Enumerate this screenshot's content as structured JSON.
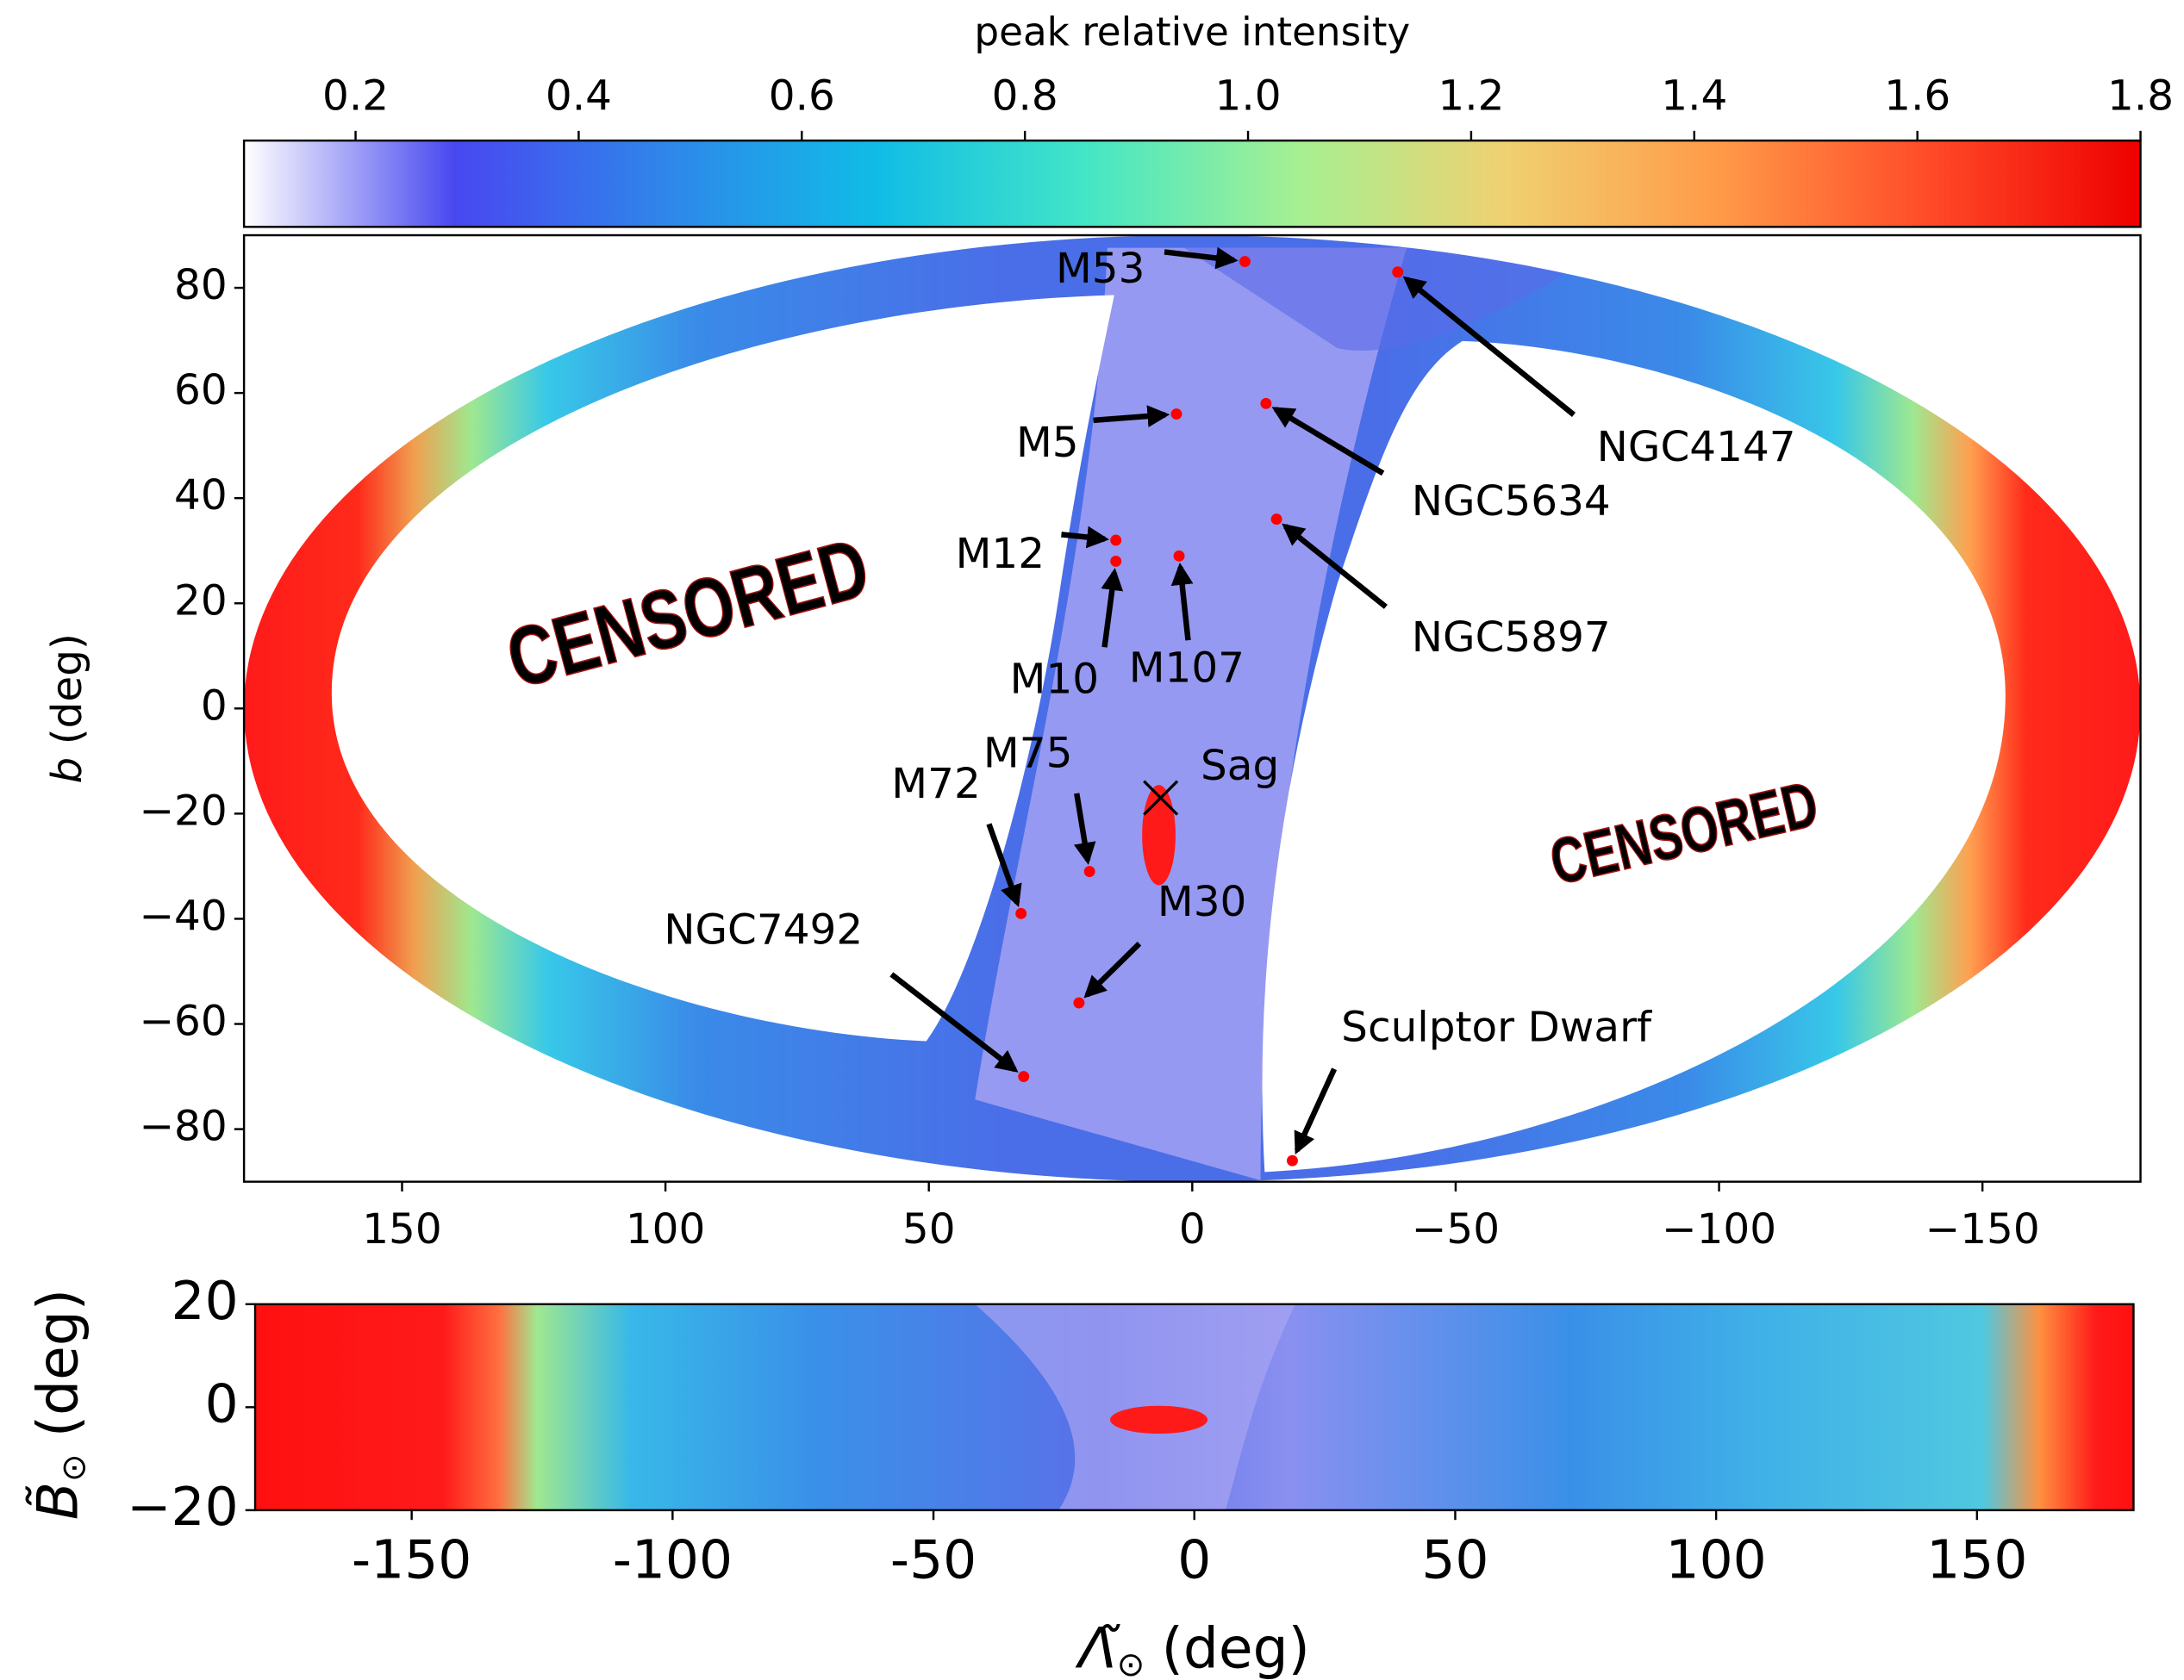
{
  "chart_data": [
    {
      "type": "colorbar",
      "label": "peak relative intensity",
      "xlim": [
        0.1,
        1.8
      ],
      "xticks": [
        0.2,
        0.4,
        0.6,
        0.8,
        {
          "value": 1,
          "label": "1.0"
        },
        1.2,
        1.4,
        1.6,
        1.8
      ],
      "colormap": [
        "#ffffff",
        "#4848f0",
        "#2f86ea",
        "#10bce6",
        "#44e6c6",
        "#a6f092",
        "#f0d070",
        "#ff9a48",
        "#ff4a28",
        "#ee0000"
      ]
    },
    {
      "type": "map",
      "ylabel": {
        "symbol": "b",
        "unit": "(deg)"
      },
      "xlim": [
        180,
        -180
      ],
      "ylim": [
        -90,
        90
      ],
      "xticks": [
        150,
        100,
        50,
        0,
        {
          "value": -50,
          "label": "−50"
        },
        {
          "value": -100,
          "label": "−100"
        },
        {
          "value": -150,
          "label": "−150"
        }
      ],
      "yticks": [
        {
          "value": -80,
          "label": "−80"
        },
        {
          "value": -60,
          "label": "−60"
        },
        {
          "value": -40,
          "label": "−40"
        },
        {
          "value": -20,
          "label": "−20"
        },
        0,
        20,
        40,
        60,
        80
      ],
      "marker_color": "#ff0000",
      "annotations": [
        {
          "label": "M53",
          "x": -10,
          "y": 85
        },
        {
          "label": "NGC4147",
          "x": -39,
          "y": 83
        },
        {
          "label": "M5",
          "x": 3,
          "y": 56
        },
        {
          "label": "NGC5634",
          "x": -14,
          "y": 58
        },
        {
          "label": "M12",
          "x": 14.5,
          "y": 32
        },
        {
          "label": "M10",
          "x": 14.5,
          "y": 28
        },
        {
          "label": "M107",
          "x": 2.5,
          "y": 29
        },
        {
          "label": "NGC5897",
          "x": -16,
          "y": 36
        },
        {
          "label": "Sag",
          "x": 6,
          "y": -17,
          "marker": "x"
        },
        {
          "label": "M75",
          "x": 19.5,
          "y": -31
        },
        {
          "label": "M72",
          "x": 32.5,
          "y": -39
        },
        {
          "label": "M30",
          "x": 21.5,
          "y": -56
        },
        {
          "label": "NGC7492",
          "x": 32,
          "y": -70
        },
        {
          "label": "Sculptor Dwarf",
          "x": -19,
          "y": -86
        }
      ],
      "stamps": [
        "CENSORED",
        "CENSORED"
      ]
    },
    {
      "type": "map",
      "xlabel": {
        "symbol": "Λ̃",
        "subscript": "⊙",
        "unit": "(deg)"
      },
      "ylabel": {
        "symbol": "B̃",
        "subscript": "⊙",
        "unit": "(deg)"
      },
      "xlim": [
        -180,
        180
      ],
      "ylim": [
        -20,
        20
      ],
      "xticks": [
        -150,
        -100,
        -50,
        0,
        50,
        100,
        150
      ],
      "yticks": [
        {
          "value": -20,
          "label": "−20"
        },
        0,
        20
      ]
    }
  ]
}
